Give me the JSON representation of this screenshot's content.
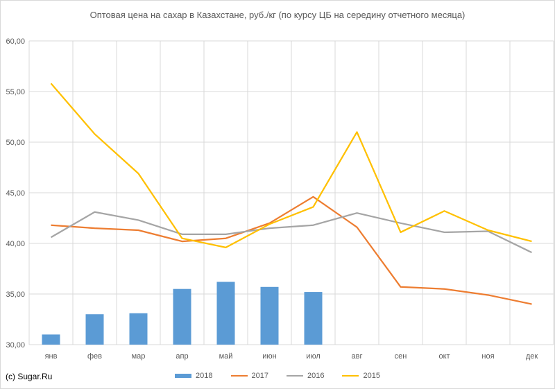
{
  "chart_data": {
    "type": "bar+line",
    "title": "Оптовая цена на сахар в Казахстане, руб./кг (по курсу ЦБ на середину отчетного месяца)",
    "categories": [
      "янв",
      "фев",
      "мар",
      "апр",
      "май",
      "июн",
      "июл",
      "авг",
      "сен",
      "окт",
      "ноя",
      "дек"
    ],
    "ylim": [
      30,
      60
    ],
    "yticks": [
      "30,00",
      "35,00",
      "40,00",
      "45,00",
      "50,00",
      "55,00",
      "60,00"
    ],
    "grid": true,
    "legend_position": "bottom",
    "series": [
      {
        "name": "2018",
        "kind": "bar",
        "color": "#5b9bd5",
        "values": [
          31.0,
          33.0,
          33.1,
          35.5,
          36.2,
          35.7,
          35.2,
          null,
          null,
          null,
          null,
          null
        ]
      },
      {
        "name": "2017",
        "kind": "line",
        "color": "#ed7d31",
        "values": [
          41.8,
          41.5,
          41.3,
          40.2,
          40.5,
          42.0,
          44.6,
          41.6,
          35.7,
          35.5,
          34.9,
          34.0
        ]
      },
      {
        "name": "2016",
        "kind": "line",
        "color": "#a5a5a5",
        "values": [
          40.6,
          43.1,
          42.3,
          40.9,
          40.9,
          41.5,
          41.8,
          43.0,
          42.0,
          41.1,
          41.2,
          39.1
        ]
      },
      {
        "name": "2015",
        "kind": "line",
        "color": "#ffc000",
        "values": [
          55.8,
          50.8,
          46.9,
          40.5,
          39.6,
          41.9,
          43.6,
          51.0,
          41.1,
          43.2,
          41.3,
          40.2
        ]
      }
    ]
  },
  "credit": "(c) Sugar.Ru"
}
